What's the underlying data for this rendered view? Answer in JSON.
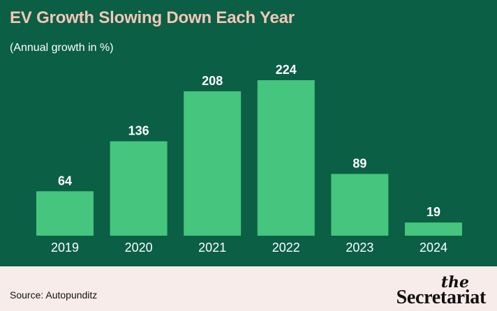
{
  "title": "EV Growth Slowing Down Each Year",
  "subtitle": "(Annual growth in %)",
  "source": "Source: Autopunditz",
  "brand": {
    "the": "the",
    "name": "Secretariat"
  },
  "colors": {
    "background": "#0a5f45",
    "bar": "#45c57d",
    "title": "#f5c6b8",
    "text": "#ffffff",
    "footer": "#f8ecea"
  },
  "chart_data": {
    "type": "bar",
    "categories": [
      "2019",
      "2020",
      "2021",
      "2022",
      "2023",
      "2024"
    ],
    "values": [
      64,
      136,
      208,
      224,
      89,
      19
    ],
    "data_labels": [
      "64",
      "136",
      "208",
      "224",
      "89",
      "19"
    ],
    "title": "EV Growth Slowing Down Each Year",
    "subtitle": "(Annual growth in %)",
    "xlabel": "",
    "ylabel": "",
    "ylim": [
      0,
      224
    ],
    "grid": false,
    "legend": "none"
  }
}
